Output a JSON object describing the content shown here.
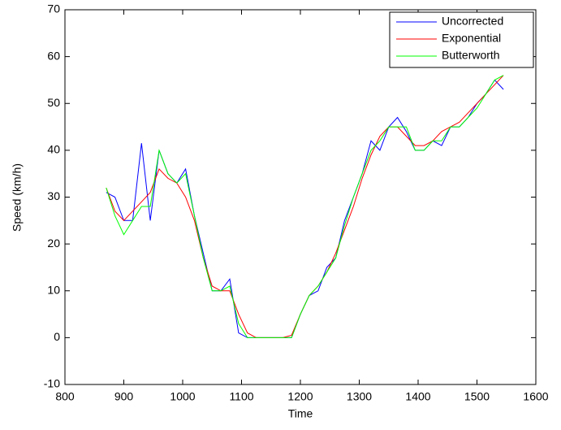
{
  "chart_data": {
    "type": "line",
    "x_label": "Time",
    "y_label": "Speed (km/h)",
    "x": [
      870,
      885,
      900,
      915,
      930,
      945,
      960,
      975,
      990,
      1005,
      1020,
      1035,
      1050,
      1065,
      1080,
      1095,
      1110,
      1125,
      1140,
      1155,
      1170,
      1185,
      1200,
      1215,
      1230,
      1245,
      1260,
      1275,
      1290,
      1305,
      1320,
      1335,
      1350,
      1365,
      1380,
      1395,
      1410,
      1425,
      1440,
      1455,
      1470,
      1485,
      1500,
      1515,
      1530,
      1545
    ],
    "series": [
      {
        "name": "Uncorrected",
        "color": "#0000ff",
        "values": [
          31,
          30,
          25,
          25,
          41.5,
          25,
          40,
          35,
          33,
          36,
          26,
          18,
          10,
          10,
          12.5,
          1,
          0,
          0,
          0,
          0,
          0,
          0,
          5,
          9,
          10,
          15,
          17,
          25,
          30,
          35,
          42,
          40,
          45,
          47,
          44,
          40,
          40,
          42,
          41,
          45,
          45,
          47,
          50,
          52,
          55,
          53
        ]
      },
      {
        "name": "Exponential",
        "color": "#ff0000",
        "values": [
          32,
          27,
          25,
          27,
          29,
          31,
          36,
          34,
          33,
          30,
          25,
          17,
          11,
          10,
          10,
          5,
          1,
          0,
          0,
          0,
          0,
          0.5,
          5,
          9,
          11,
          14,
          18,
          23,
          28,
          34,
          39,
          43,
          45,
          45,
          43,
          41,
          41,
          42,
          44,
          45,
          46,
          48,
          50,
          52,
          54,
          56
        ]
      },
      {
        "name": "Butterworth",
        "color": "#00ff00",
        "values": [
          32,
          26,
          22,
          25,
          28,
          28,
          40,
          35,
          33,
          35,
          26,
          17,
          10,
          10,
          11,
          3,
          0,
          0,
          0,
          0,
          0,
          0,
          5,
          9,
          11,
          14,
          17,
          24,
          30,
          35,
          40,
          42,
          45,
          45,
          45,
          40,
          40,
          42,
          42,
          45,
          45,
          47,
          49,
          52,
          55,
          56
        ]
      }
    ],
    "xlim": [
      800,
      1600
    ],
    "xticks": [
      800,
      900,
      1000,
      1100,
      1200,
      1300,
      1400,
      1500,
      1600
    ],
    "ylim": [
      -10,
      70
    ],
    "yticks": [
      -10,
      0,
      10,
      20,
      30,
      40,
      50,
      60,
      70
    ],
    "grid": false,
    "legend": "top-right"
  }
}
